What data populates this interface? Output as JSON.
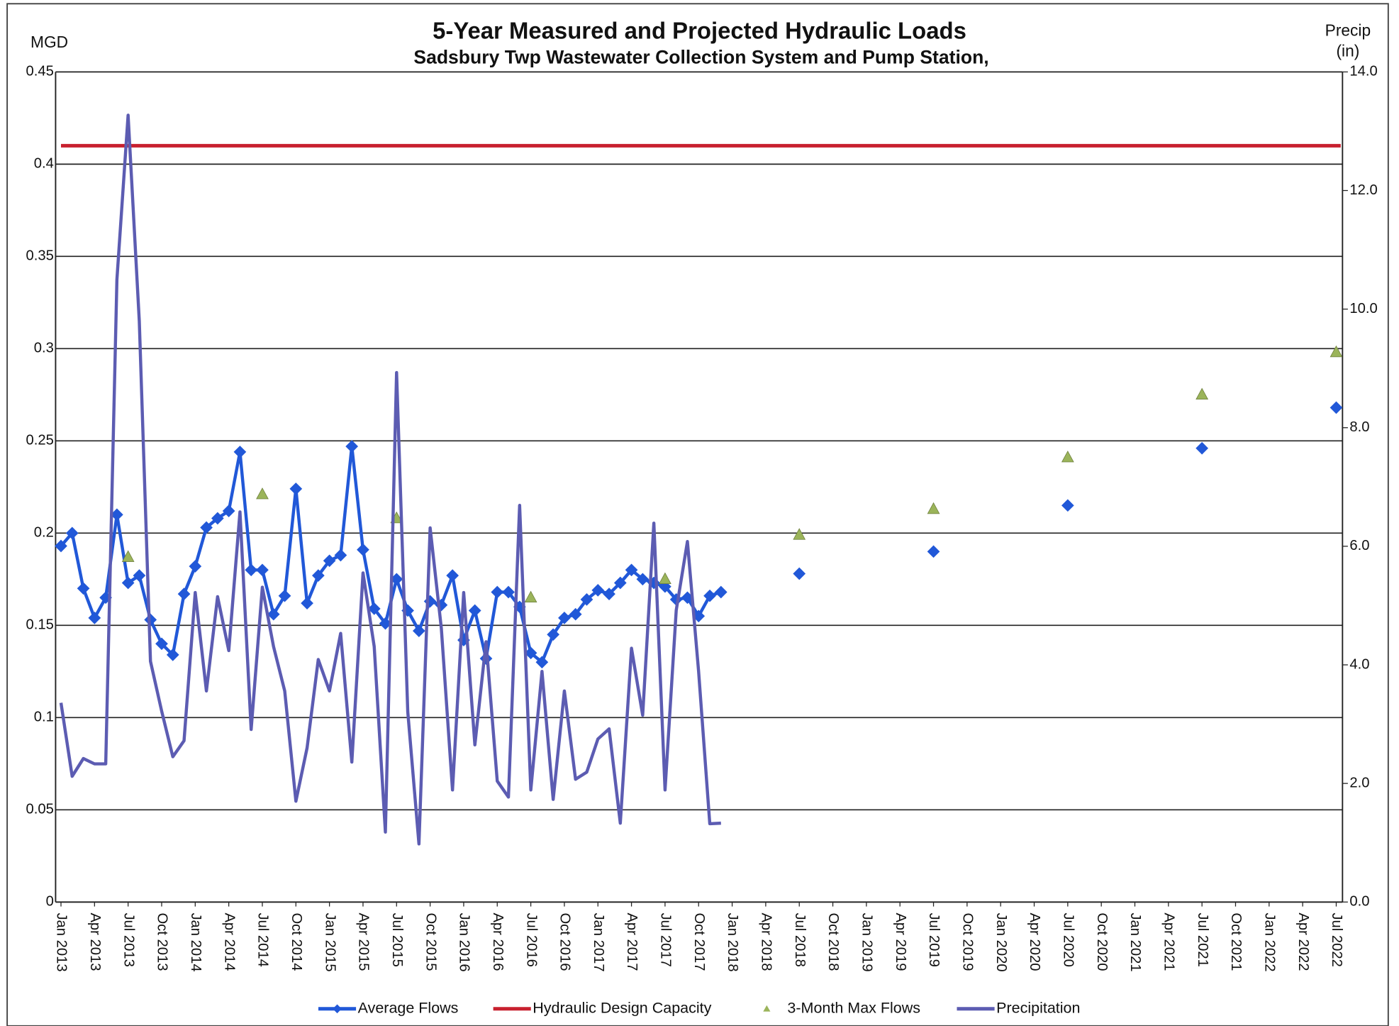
{
  "chart_data": {
    "type": "line",
    "title": "5-Year Measured and Projected Hydraulic Loads",
    "subtitle": "Sadsbury Twp Wastewater Collection System and Pump Station,",
    "ylabel": "MGD",
    "y2label": [
      "Precip",
      "(in)"
    ],
    "ylim": [
      0,
      0.45
    ],
    "yticks": [
      0,
      0.05,
      0.1,
      0.15,
      0.2,
      0.25,
      0.3,
      0.35,
      0.4,
      0.45
    ],
    "y2lim": [
      0,
      14
    ],
    "y2ticks": [
      {
        "value": 0,
        "label": "0.0"
      },
      {
        "value": 2,
        "label": "2.0"
      },
      {
        "value": 4,
        "label": "4.0"
      },
      {
        "value": 6,
        "label": "6.0"
      },
      {
        "value": 8,
        "label": "8.0"
      },
      {
        "value": 10,
        "label": "10.0"
      },
      {
        "value": 12,
        "label": "12.0"
      },
      {
        "value": 14,
        "label": "14.0"
      }
    ],
    "grid": true,
    "legend": "bottom",
    "categories": [
      "Jan 2013",
      null,
      null,
      "Apr 2013",
      null,
      null,
      "Jul 2013",
      null,
      null,
      "Oct 2013",
      null,
      null,
      "Jan 2014",
      null,
      null,
      "Apr 2014",
      null,
      null,
      "Jul 2014",
      null,
      null,
      "Oct 2014",
      null,
      null,
      "Jan 2015",
      null,
      null,
      "Apr 2015",
      null,
      null,
      "Jul 2015",
      null,
      null,
      "Oct 2015",
      null,
      null,
      "Jan 2016",
      null,
      null,
      "Apr 2016",
      null,
      null,
      "Jul 2016",
      null,
      null,
      "Oct 2016",
      null,
      null,
      "Jan 2017",
      null,
      null,
      "Apr 2017",
      null,
      null,
      "Jul 2017",
      null,
      null,
      "Oct 2017",
      null,
      null,
      "Jan 2018",
      null,
      null,
      "Apr 2018",
      null,
      null,
      "Jul 2018",
      null,
      null,
      "Oct 2018",
      null,
      null,
      "Jan 2019",
      null,
      null,
      "Apr 2019",
      null,
      null,
      "Jul 2019",
      null,
      null,
      "Oct 2019",
      null,
      null,
      "Jan 2020",
      null,
      null,
      "Apr 2020",
      null,
      null,
      "Jul 2020",
      null,
      null,
      "Oct 2020",
      null,
      null,
      "Jan 2021",
      null,
      null,
      "Apr 2021",
      null,
      null,
      "Jul 2021",
      null,
      null,
      "Oct 2021",
      null,
      null,
      "Jan 2022",
      null,
      null,
      "Apr 2022",
      null,
      null,
      "Jul 2022"
    ],
    "series": [
      {
        "name": "Average Flows",
        "color": "#2158d8",
        "marker": "diamond",
        "line": true,
        "values": [
          0.193,
          0.2,
          0.17,
          0.154,
          0.165,
          0.21,
          0.173,
          0.177,
          0.153,
          0.14,
          0.134,
          0.167,
          0.182,
          0.203,
          0.208,
          0.212,
          0.244,
          0.18,
          0.18,
          0.156,
          0.166,
          0.224,
          0.162,
          0.177,
          0.185,
          0.188,
          0.247,
          0.191,
          0.159,
          0.151,
          0.175,
          0.158,
          0.147,
          0.163,
          0.161,
          0.177,
          0.142,
          0.158,
          0.132,
          0.168,
          0.168,
          0.16,
          0.135,
          0.13,
          0.145,
          0.154,
          0.156,
          0.164,
          0.169,
          0.167,
          0.173,
          0.18,
          0.175,
          0.173,
          0.171,
          0.164,
          0.165,
          0.155,
          0.166,
          0.168,
          null,
          null,
          null,
          null,
          null,
          null,
          0.178,
          null,
          null,
          null,
          null,
          null,
          null,
          null,
          null,
          null,
          null,
          null,
          0.19,
          null,
          null,
          null,
          null,
          null,
          null,
          null,
          null,
          null,
          null,
          null,
          0.215,
          null,
          null,
          null,
          null,
          null,
          null,
          null,
          null,
          null,
          null,
          null,
          0.246,
          null,
          null,
          null,
          null,
          null,
          null,
          null,
          null,
          null,
          null,
          null,
          0.268
        ]
      },
      {
        "name": "Hydraulic Design Capacity",
        "color": "#c8202f",
        "value": 0.41
      },
      {
        "name": "3-Month Max Flows",
        "color": "#9bb45a",
        "marker": "triangle",
        "line": false,
        "values": [
          null,
          null,
          null,
          null,
          null,
          null,
          0.187,
          null,
          null,
          null,
          null,
          null,
          null,
          null,
          null,
          null,
          null,
          null,
          0.221,
          null,
          null,
          null,
          null,
          null,
          null,
          null,
          null,
          null,
          null,
          null,
          0.208,
          null,
          null,
          null,
          null,
          null,
          null,
          null,
          null,
          null,
          null,
          null,
          0.165,
          null,
          null,
          null,
          null,
          null,
          null,
          null,
          null,
          null,
          null,
          null,
          0.175,
          null,
          null,
          null,
          null,
          null,
          null,
          null,
          null,
          null,
          null,
          null,
          0.199,
          null,
          null,
          null,
          null,
          null,
          null,
          null,
          null,
          null,
          null,
          null,
          0.213,
          null,
          null,
          null,
          null,
          null,
          null,
          null,
          null,
          null,
          null,
          null,
          0.241,
          null,
          null,
          null,
          null,
          null,
          null,
          null,
          null,
          null,
          null,
          null,
          0.275,
          null,
          null,
          null,
          null,
          null,
          null,
          null,
          null,
          null,
          null,
          null,
          0.298
        ]
      },
      {
        "name": "Precipitation",
        "color": "#5c5cb2",
        "axis": "y2",
        "line": true,
        "values": [
          3.36,
          2.12,
          2.42,
          2.33,
          2.33,
          10.5,
          13.27,
          9.8,
          4.06,
          3.22,
          2.45,
          2.72,
          5.22,
          3.56,
          5.15,
          4.24,
          6.58,
          2.91,
          5.31,
          4.31,
          3.56,
          1.7,
          2.6,
          4.09,
          3.56,
          4.53,
          2.36,
          5.55,
          4.31,
          1.18,
          8.93,
          3.21,
          0.98,
          6.31,
          4.62,
          1.89,
          5.22,
          2.65,
          4.39,
          2.04,
          1.77,
          6.69,
          1.89,
          3.89,
          1.73,
          3.56,
          2.07,
          2.19,
          2.75,
          2.92,
          1.33,
          4.28,
          3.15,
          6.39,
          1.89,
          4.92,
          6.08,
          3.89,
          1.32,
          1.33,
          null,
          null,
          null,
          null,
          null,
          null,
          null,
          null,
          null,
          null,
          null,
          null,
          null,
          null,
          null,
          null,
          null,
          null,
          null,
          null,
          null,
          null,
          null,
          null,
          null,
          null,
          null,
          null,
          null,
          null,
          null,
          null,
          null,
          null,
          null,
          null,
          null,
          null,
          null,
          null,
          null,
          null,
          null,
          null,
          null,
          null,
          null,
          null,
          null,
          null,
          null,
          null,
          null,
          null,
          null
        ]
      }
    ]
  }
}
